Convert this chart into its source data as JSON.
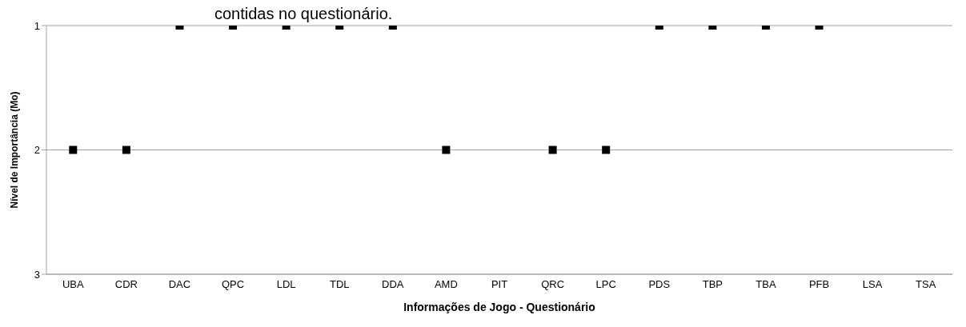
{
  "chart_data": {
    "type": "scatter",
    "title": "contidas no questionário.",
    "xlabel": "Informações de Jogo - Questionário",
    "ylabel": "Nível de Importância (Mo)",
    "categories": [
      "UBA",
      "CDR",
      "DAC",
      "QPC",
      "LDL",
      "TDL",
      "DDA",
      "AMD",
      "PIT",
      "QRC",
      "LPC",
      "PDS",
      "TBP",
      "TBA",
      "PFB",
      "LSA",
      "TSA"
    ],
    "values": [
      2,
      2,
      1,
      1,
      1,
      1,
      1,
      2,
      null,
      2,
      2,
      1,
      1,
      1,
      1,
      null,
      null
    ],
    "color": "#000000",
    "marker": "square",
    "ylim": [
      3,
      1
    ],
    "yticks": [
      1,
      2,
      3
    ],
    "grid": "y"
  }
}
